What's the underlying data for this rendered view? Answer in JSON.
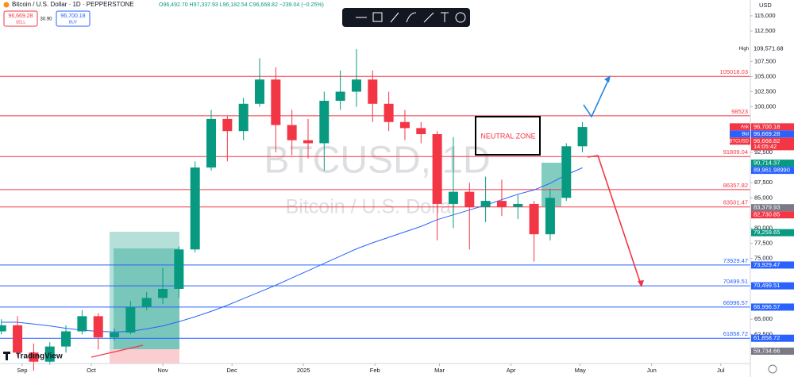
{
  "header": {
    "symbol": "Bitcoin / U.S. Dollar · 1D · PEPPERSTONE",
    "ohlc": "O96,492.70 H97,337.93 L96,182.54 C96,668.82 −239.04 (−0.25%)",
    "currency": "USD"
  },
  "trade": {
    "sell_price": "96,669.28",
    "sell_label": "SELL",
    "spread": "30.90",
    "buy_price": "96,700.18",
    "buy_label": "BUY"
  },
  "watermark": {
    "ticker": "BTCUSD, 1D",
    "name": "Bitcoin / U.S. Dollar"
  },
  "annotation": {
    "zone": "NEUTRAL ZONE"
  },
  "brand": "TradingView",
  "chart_data": {
    "type": "candlestick",
    "up_color": "#089981",
    "down_color": "#f23645",
    "x": [
      -9,
      -2,
      5,
      12,
      19,
      26,
      33,
      40,
      47,
      54,
      61,
      68,
      75,
      82,
      89,
      96,
      103,
      110,
      117,
      124,
      131,
      138,
      145,
      152,
      159,
      166,
      173,
      180,
      187,
      194,
      201,
      208,
      215,
      222,
      229,
      236,
      243
    ],
    "open": [
      63000,
      64000,
      59500,
      58000,
      60500,
      63000,
      65500,
      62000,
      62800,
      67000,
      68500,
      70000,
      76500,
      90000,
      98000,
      96000,
      100500,
      104500,
      97000,
      94500,
      94000,
      101000,
      102500,
      104500,
      100500,
      97500,
      96500,
      95500,
      84000,
      86000,
      83500,
      84500,
      83500,
      84000,
      79000,
      85000,
      93500
    ],
    "high": [
      65000,
      65500,
      61000,
      61200,
      64000,
      66500,
      66000,
      63500,
      68000,
      69500,
      73500,
      77000,
      91000,
      99500,
      98500,
      101500,
      108000,
      106500,
      99500,
      98000,
      102500,
      106000,
      109500,
      106000,
      102500,
      99500,
      97500,
      96000,
      95000,
      87500,
      88500,
      88000,
      85500,
      84500,
      86500,
      94000,
      97500
    ],
    "low": [
      62500,
      58800,
      56500,
      57500,
      59500,
      62500,
      60000,
      61500,
      62500,
      66500,
      67500,
      68500,
      76000,
      89500,
      91000,
      94500,
      100000,
      92500,
      92000,
      91500,
      89500,
      99500,
      100000,
      97500,
      96000,
      94500,
      94000,
      78000,
      80000,
      76500,
      81000,
      82000,
      81500,
      74500,
      78000,
      84500,
      92500
    ],
    "close": [
      64000,
      59500,
      58000,
      60500,
      63000,
      65500,
      62000,
      62800,
      67000,
      68500,
      70000,
      76500,
      90000,
      98000,
      96000,
      100500,
      104500,
      97000,
      94500,
      94000,
      101000,
      102500,
      104500,
      100500,
      97500,
      96500,
      95500,
      84000,
      86000,
      83500,
      84500,
      83500,
      84000,
      79000,
      85000,
      93500,
      96669
    ],
    "indicator": {
      "color": "#2962ff",
      "values": [
        64500,
        64500,
        64200,
        63900,
        63500,
        63200,
        63000,
        62900,
        63000,
        63400,
        63900,
        64600,
        65400,
        66300,
        67300,
        68400,
        69500,
        70600,
        71800,
        73000,
        74200,
        75400,
        76600,
        77600,
        78500,
        79400,
        80300,
        81400,
        82200,
        83000,
        83800,
        84700,
        85600,
        86300,
        87400,
        88800,
        89962
      ]
    },
    "xlim": [
      -9.6,
      315.8
    ],
    "xticks": [
      {
        "value": 0,
        "label": "Sep"
      },
      {
        "value": 30,
        "label": "Oct"
      },
      {
        "value": 61,
        "label": "Nov"
      },
      {
        "value": 91,
        "label": "Dec"
      },
      {
        "value": 122,
        "label": "2025"
      },
      {
        "value": 153,
        "label": "Feb"
      },
      {
        "value": 181,
        "label": "Mar"
      },
      {
        "value": 212,
        "label": "Apr"
      },
      {
        "value": 242,
        "label": "May"
      },
      {
        "value": 273,
        "label": "Jun"
      },
      {
        "value": 303,
        "label": "Jul"
      }
    ],
    "ylim": [
      57700,
      116300
    ],
    "yticks": [
      {
        "value": 115000,
        "label": "115,000"
      },
      {
        "value": 112500,
        "label": "112,500"
      },
      {
        "value": 107500,
        "label": "107,500"
      },
      {
        "value": 105000,
        "label": "105,000"
      },
      {
        "value": 102500,
        "label": "102,500"
      },
      {
        "value": 100000,
        "label": "100,000"
      },
      {
        "value": 92500,
        "label": "92,500"
      },
      {
        "value": 87500,
        "label": "87,500"
      },
      {
        "value": 85000,
        "label": "85,000"
      },
      {
        "value": 80000,
        "label": "80,000"
      },
      {
        "value": 77500,
        "label": "77,500"
      },
      {
        "value": 75000,
        "label": "75,000"
      },
      {
        "value": 65000,
        "label": "65,000"
      },
      {
        "value": 62500,
        "label": "62,500"
      }
    ],
    "resistance": {
      "color": "#f23645",
      "values": [
        105018.03,
        98523,
        91809.04,
        86357.82,
        83501.47
      ]
    },
    "support": {
      "color": "#2962ff",
      "values": [
        73929.47,
        70499.51,
        66996.57,
        61858.72
      ]
    },
    "badges": [
      {
        "value": 109571.68,
        "label": "109,571.68",
        "color": "#ffffff",
        "tag": "High"
      },
      {
        "value": 96700.18,
        "label": "96,700.18",
        "color": "#f23645",
        "tag": "Ask"
      },
      {
        "value": 96669.28,
        "label": "96,669.28",
        "color": "#2962ff",
        "tag": "Bid"
      },
      {
        "value": 96668.82,
        "label": "96,668.82",
        "color": "#f23645",
        "tag": "BTCUSD",
        "sub": "14:05:42"
      },
      {
        "value": 90714.37,
        "label": "90,714.37",
        "color": "#089981"
      },
      {
        "value": 89961.9899,
        "label": "89,961.98990",
        "color": "#2962ff"
      },
      {
        "value": 83379.93,
        "label": "83,379.93",
        "color": "#787b86"
      },
      {
        "value": 82730.85,
        "label": "82,730.85",
        "color": "#f23645"
      },
      {
        "value": 79259.65,
        "label": "79,259.65",
        "color": "#089981"
      },
      {
        "value": 73929.47,
        "label": "73,929.47",
        "color": "#2962ff"
      },
      {
        "value": 70499.51,
        "label": "70,499.51",
        "color": "#2962ff"
      },
      {
        "value": 66996.57,
        "label": "66,996.57",
        "color": "#2962ff"
      },
      {
        "value": 61858.72,
        "label": "61,858.72",
        "color": "#2962ff"
      },
      {
        "value": 59734.66,
        "label": "59,734.66",
        "color": "#787b86"
      }
    ]
  }
}
